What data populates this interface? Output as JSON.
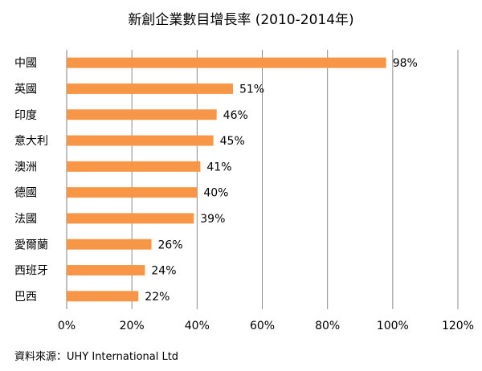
{
  "chart_data": {
    "type": "bar",
    "orientation": "horizontal",
    "title": "新創企業數目增長率 (2010-2014年)",
    "categories": [
      "中國",
      "英國",
      "印度",
      "意大利",
      "澳洲",
      "德國",
      "法國",
      "愛爾蘭",
      "西班牙",
      "巴西"
    ],
    "values": [
      98,
      51,
      46,
      45,
      41,
      40,
      39,
      26,
      24,
      22
    ],
    "value_labels": [
      "98%",
      "51%",
      "46%",
      "45%",
      "41%",
      "40%",
      "39%",
      "26%",
      "24%",
      "22%"
    ],
    "xlim": [
      0,
      120
    ],
    "x_ticks": [
      0,
      20,
      40,
      60,
      80,
      100,
      120
    ],
    "x_tick_labels": [
      "0%",
      "20%",
      "40%",
      "60%",
      "80%",
      "100%",
      "120%"
    ],
    "grid": "vertical",
    "legend": "none",
    "bar_color": "#F79646"
  },
  "source": "資料來源：UHY International Ltd"
}
